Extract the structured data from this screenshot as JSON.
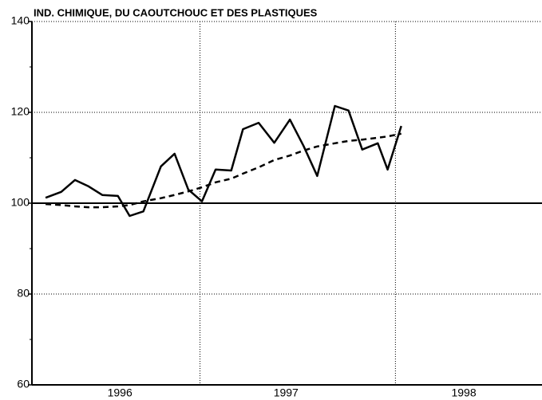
{
  "chart_data": {
    "type": "line",
    "title": "IND. CHIMIQUE, DU CAOUTCHOUC ET DES PLASTIQUES",
    "x": [
      1996.21,
      1996.29,
      1996.36,
      1996.43,
      1996.5,
      1996.58,
      1996.64,
      1996.71,
      1996.8,
      1996.87,
      1996.94,
      1997.01,
      1997.08,
      1997.16,
      1997.22,
      1997.3,
      1997.38,
      1997.46,
      1997.53,
      1997.6,
      1997.69,
      1997.76,
      1997.83,
      1997.91,
      1997.96,
      1998.03
    ],
    "series": [
      {
        "color": "#000000",
        "dashed": false,
        "values": [
          101.2,
          102.5,
          105.1,
          103.7,
          101.8,
          101.6,
          97.2,
          98.2,
          108.1,
          110.9,
          103.0,
          100.4,
          107.4,
          107.2,
          116.3,
          117.7,
          113.3,
          118.4,
          112.6,
          106.0,
          121.4,
          120.4,
          111.8,
          113.2,
          107.4,
          117.0
        ]
      },
      {
        "color": "#000000",
        "dashed": true,
        "values": [
          99.8,
          99.6,
          99.3,
          99.1,
          99.1,
          99.3,
          99.6,
          100.4,
          101.1,
          101.8,
          102.6,
          103.5,
          104.6,
          105.4,
          106.5,
          107.9,
          109.5,
          110.5,
          111.6,
          112.5,
          113.2,
          113.7,
          114.0,
          114.4,
          114.7,
          115.3
        ]
      }
    ],
    "xlim": [
      1996.14,
      1998.75
    ],
    "xticks": [
      {
        "value": 1996.59,
        "label": "1996"
      },
      {
        "value": 1997.44,
        "label": "1997"
      },
      {
        "value": 1998.35,
        "label": "1998"
      }
    ],
    "xgrid": [
      1997,
      1998
    ],
    "ylim": [
      60,
      140
    ],
    "yticks": [
      60,
      80,
      100,
      120,
      140
    ],
    "yminorticks": [
      70,
      90,
      110,
      130
    ],
    "reference_line": 100,
    "grid": true
  }
}
